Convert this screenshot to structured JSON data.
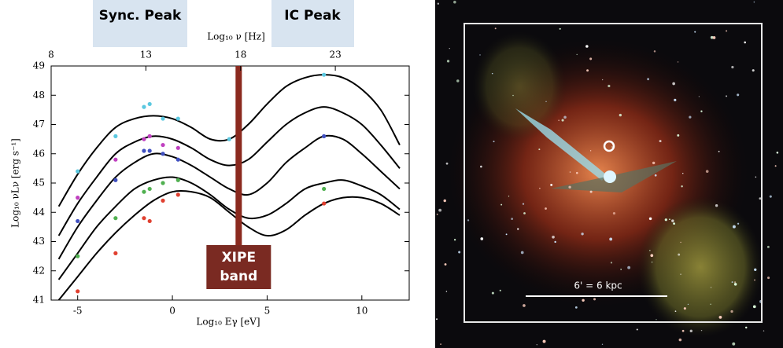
{
  "chart_data": {
    "type": "line",
    "xlabel": "Log₁₀ Eγ [eV]",
    "ylabel": "Log₁₀ νLν [erg s⁻¹]",
    "x2label": "Log₁₀ ν [Hz]",
    "xlim": [
      -6.4,
      12.5
    ],
    "xticks": [
      -5,
      0,
      5,
      10
    ],
    "x2lim": [
      8,
      26.9
    ],
    "x2ticks": [
      8,
      13,
      18,
      23
    ],
    "ylim": [
      41,
      49
    ],
    "yticks": [
      41,
      42,
      43,
      44,
      45,
      46,
      47,
      48,
      49
    ],
    "annotations": {
      "sync_peak": "Sync. Peak",
      "ic_peak": "IC Peak",
      "xipe_line1": "XIPE",
      "xipe_line2": "band"
    },
    "xipe_band_x": 3.5,
    "x": [
      -6,
      -5,
      -4,
      -3,
      -2,
      -1,
      0,
      1,
      2,
      3,
      4,
      5,
      6,
      7,
      8,
      9,
      10,
      11,
      12
    ],
    "series": [
      {
        "color": "#000000",
        "values": [
          44.2,
          45.3,
          46.2,
          46.9,
          47.2,
          47.3,
          47.2,
          46.9,
          46.5,
          46.5,
          47.0,
          47.7,
          48.3,
          48.6,
          48.7,
          48.6,
          48.2,
          47.5,
          46.3
        ]
      },
      {
        "color": "#000000",
        "values": [
          43.2,
          44.3,
          45.2,
          46.0,
          46.4,
          46.6,
          46.5,
          46.2,
          45.8,
          45.6,
          45.8,
          46.4,
          47.0,
          47.4,
          47.6,
          47.4,
          47.0,
          46.3,
          45.5
        ]
      },
      {
        "color": "#000000",
        "values": [
          42.4,
          43.5,
          44.4,
          45.2,
          45.7,
          46.0,
          45.9,
          45.6,
          45.2,
          44.8,
          44.6,
          45.0,
          45.7,
          46.2,
          46.6,
          46.5,
          46.0,
          45.4,
          44.8
        ]
      },
      {
        "color": "#000000",
        "values": [
          41.7,
          42.6,
          43.5,
          44.2,
          44.8,
          45.1,
          45.2,
          45.0,
          44.6,
          44.1,
          43.8,
          43.9,
          44.3,
          44.8,
          45.0,
          45.1,
          44.9,
          44.6,
          44.1
        ]
      },
      {
        "color": "#000000",
        "values": [
          41.0,
          41.8,
          42.6,
          43.3,
          43.9,
          44.4,
          44.7,
          44.7,
          44.5,
          44.0,
          43.5,
          43.2,
          43.4,
          43.9,
          44.3,
          44.5,
          44.5,
          44.3,
          43.9
        ]
      }
    ],
    "points": [
      {
        "color": "#5bc8e0",
        "x": [
          -5,
          -3,
          -1.5,
          -1.2,
          -0.5,
          0.3,
          3,
          8
        ],
        "values": [
          45.4,
          46.6,
          47.6,
          47.7,
          47.2,
          47.2,
          46.5,
          48.7
        ]
      },
      {
        "color": "#c040c0",
        "x": [
          -5,
          -3,
          -1.5,
          -1.2,
          -0.5,
          0.3
        ],
        "values": [
          44.5,
          45.8,
          46.5,
          46.6,
          46.3,
          46.2
        ]
      },
      {
        "color": "#4050c0",
        "x": [
          -5,
          -3,
          -1.5,
          -1.2,
          -0.5,
          0.3,
          8
        ],
        "values": [
          43.7,
          45.1,
          46.1,
          46.1,
          46.0,
          45.8,
          46.6
        ]
      },
      {
        "color": "#50b050",
        "x": [
          -5,
          -3,
          -1.5,
          -1.2,
          -0.5,
          0.3,
          8
        ],
        "values": [
          42.5,
          43.8,
          44.7,
          44.8,
          45.0,
          45.1,
          44.8
        ]
      },
      {
        "color": "#e04030",
        "x": [
          -5,
          -3,
          -1.5,
          -1.2,
          -0.5,
          0.3,
          8
        ],
        "values": [
          41.3,
          42.6,
          43.8,
          43.7,
          44.4,
          44.6,
          44.3
        ]
      }
    ]
  },
  "image": {
    "scale_label": "6' = 6 kpc"
  }
}
